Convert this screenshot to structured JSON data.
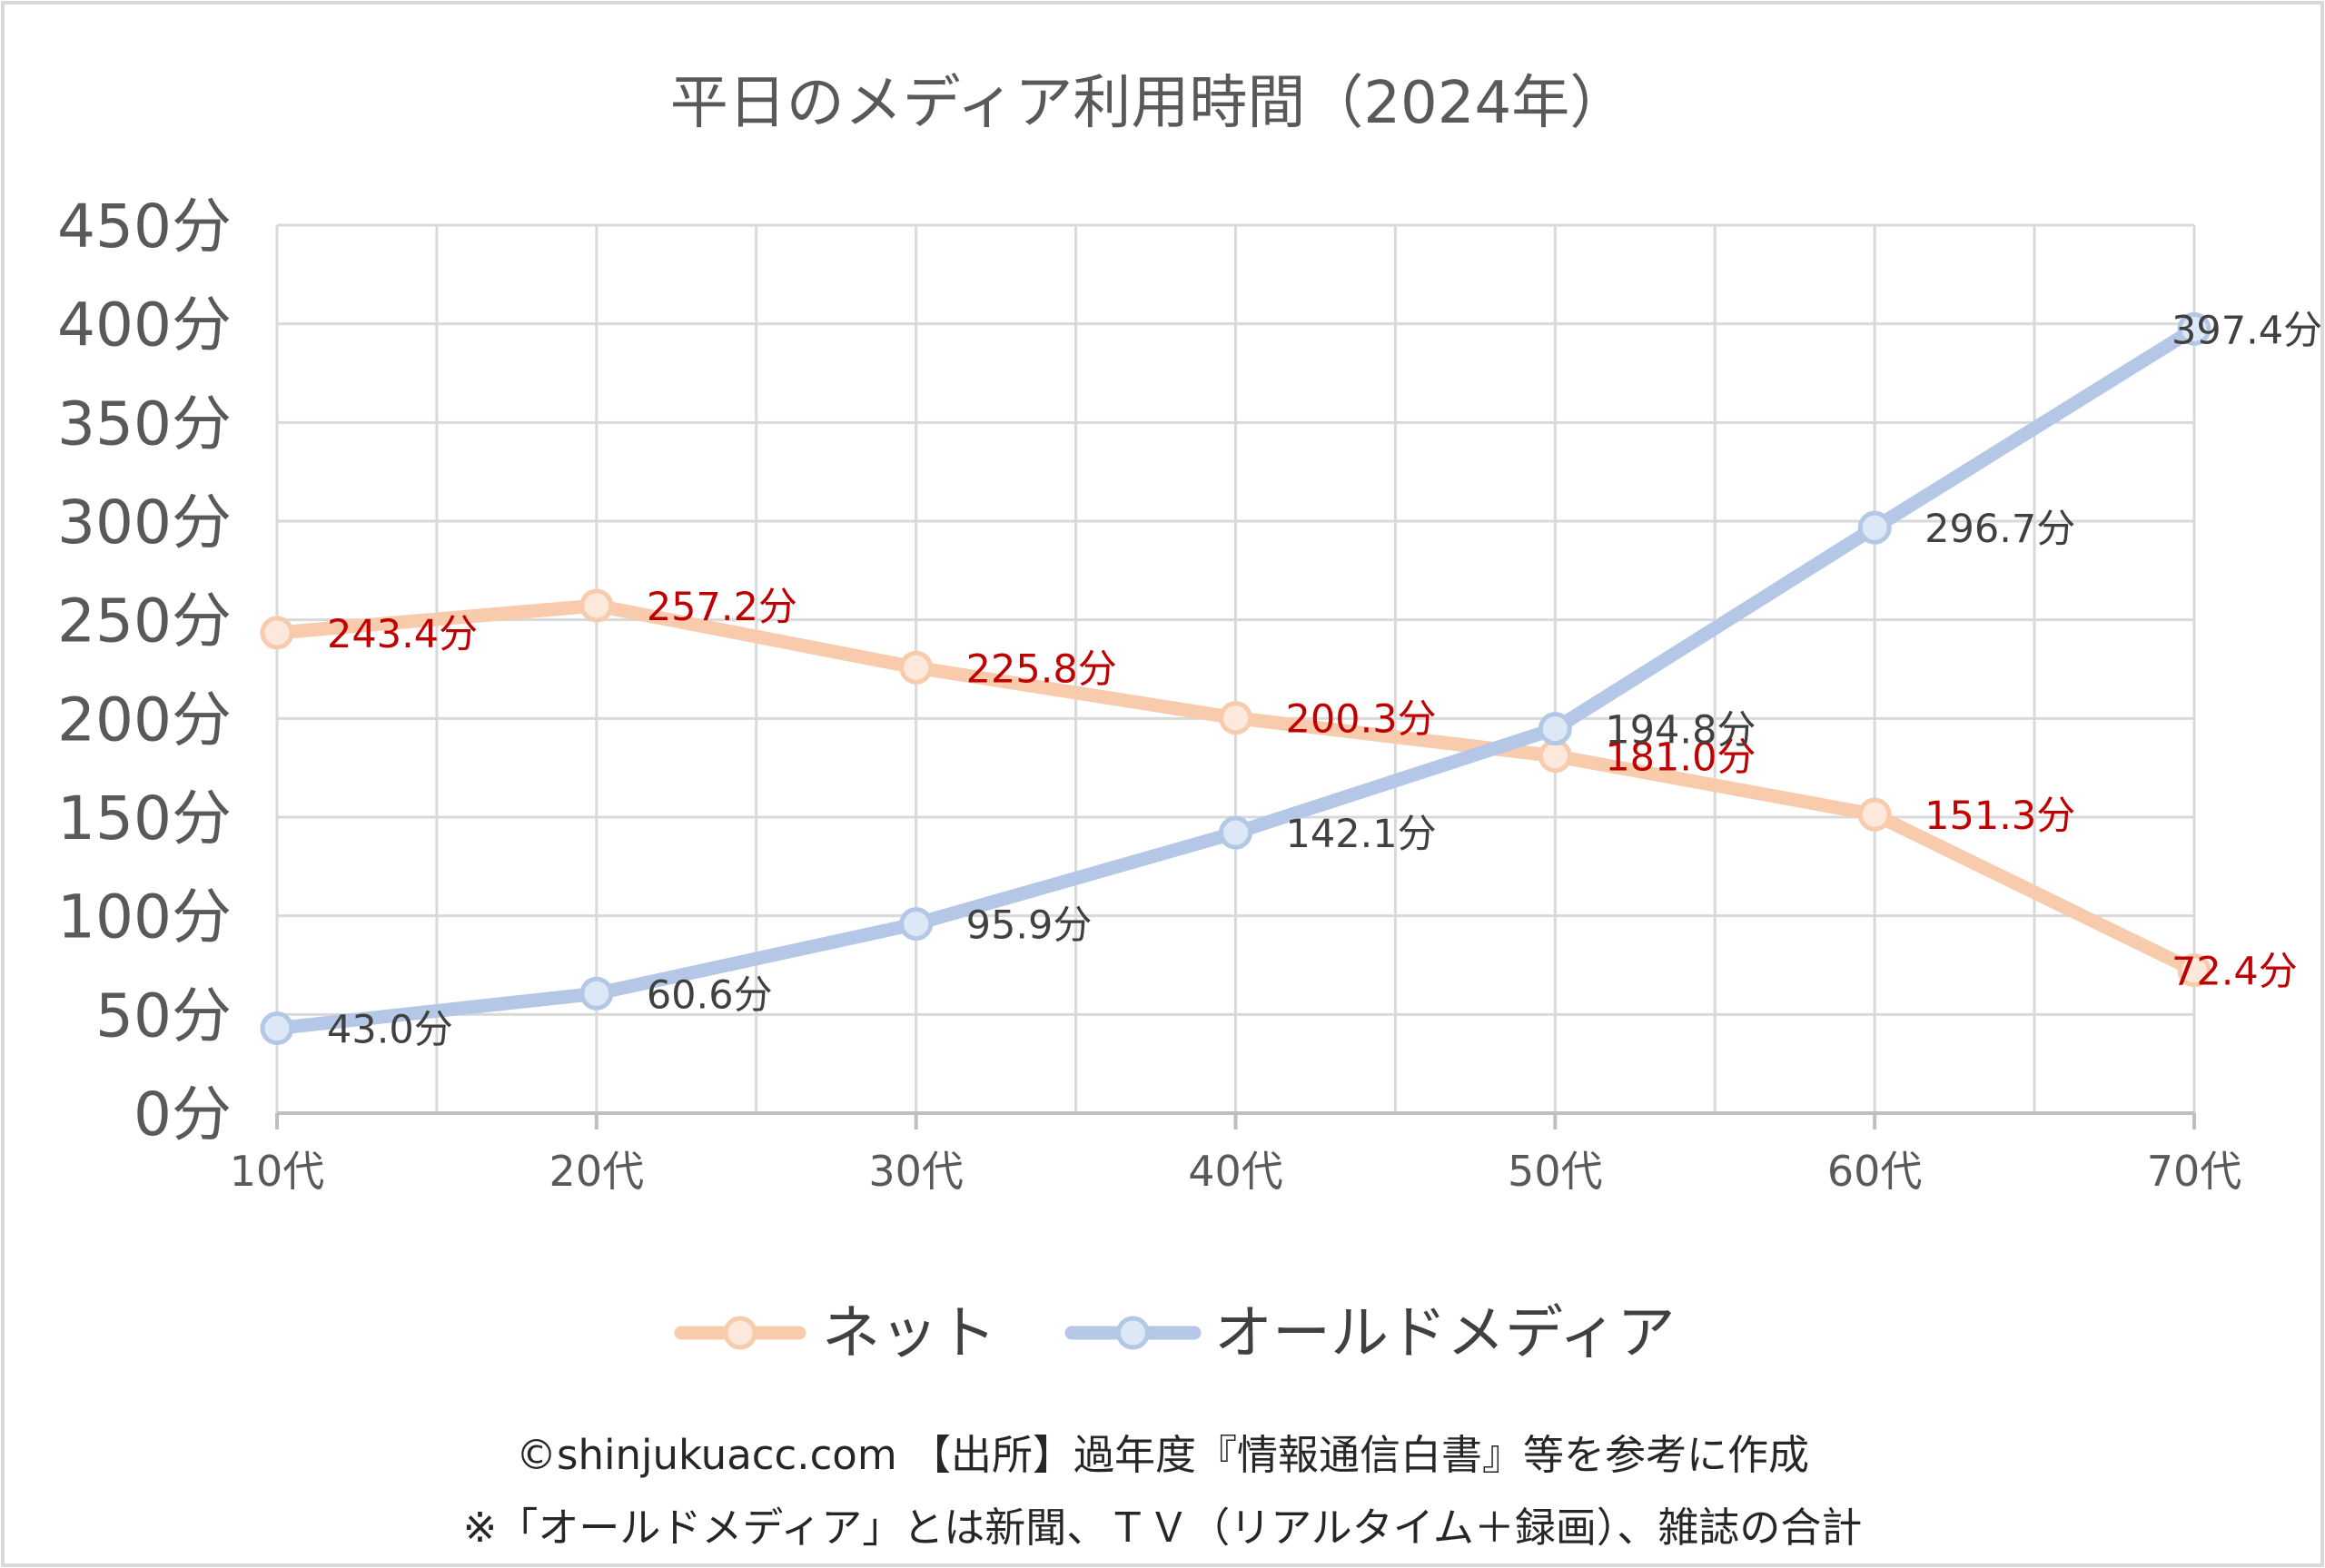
{
  "chart_data": {
    "type": "line",
    "title": "平日のメディア利用時間（2024年）",
    "categories": [
      "10代",
      "20代",
      "30代",
      "40代",
      "50代",
      "60代",
      "70代"
    ],
    "ylim": [
      0,
      450
    ],
    "y_ticks": [
      "0分",
      "50分",
      "100分",
      "150分",
      "200分",
      "250分",
      "300分",
      "350分",
      "400分",
      "450分"
    ],
    "grid": true,
    "legend_position": "bottom",
    "series": [
      {
        "name": "ネット",
        "color": "#f8cbad",
        "marker_fill": "#fde9dc",
        "label_color": "#c00000",
        "values": [
          243.4,
          257.2,
          225.8,
          200.3,
          181.0,
          151.3,
          72.4
        ],
        "labels": [
          "243.4分",
          "257.2分",
          "225.8分",
          "200.3分",
          "181.0分",
          "151.3分",
          "72.4分"
        ]
      },
      {
        "name": "オールドメディア",
        "color": "#b4c7e7",
        "marker_fill": "#dde8f6",
        "label_color": "#404040",
        "values": [
          43.0,
          60.6,
          95.9,
          142.1,
          194.8,
          296.7,
          397.4
        ],
        "labels": [
          "43.0分",
          "60.6分",
          "95.9分",
          "142.1分",
          "194.8分",
          "296.7分",
          "397.4分"
        ]
      }
    ]
  },
  "footer": {
    "line1": "©shinjukuacc.com 【出所】過年度『情報通信白書』等を参考に作成",
    "line2": "※「オールドメディア」とは新聞、ＴＶ（リアルタイム＋録画）、雑誌の合計"
  }
}
